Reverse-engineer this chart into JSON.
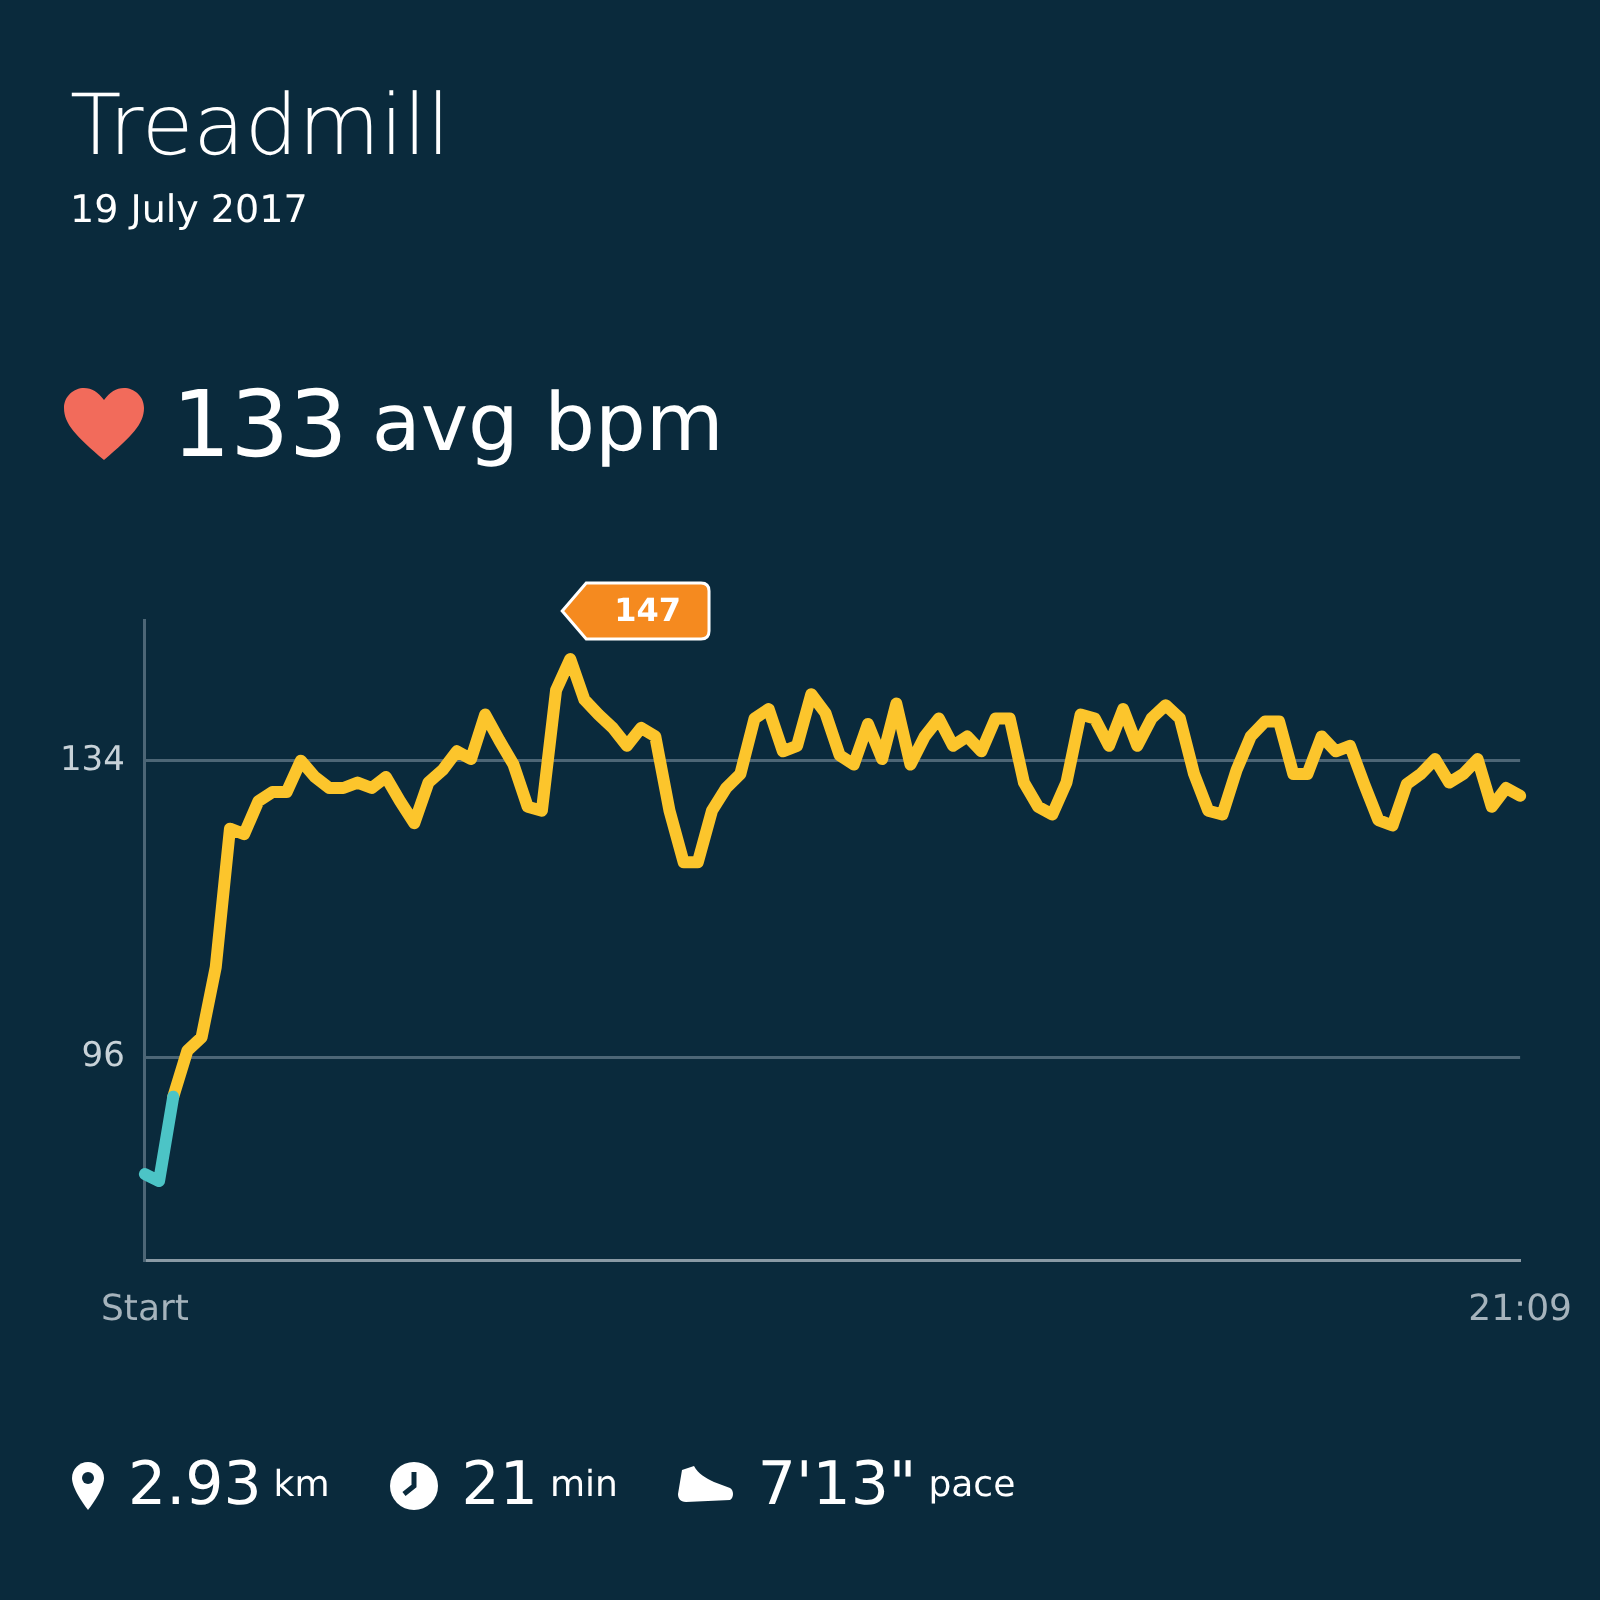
{
  "chart_data": {
    "type": "line",
    "title": "Treadmill",
    "subtitle": "19 July 2017",
    "annotations": [
      "133 avg bpm",
      "147",
      "2.93 km",
      "21 min",
      "7'13\" pace"
    ],
    "categories": [
      "Start",
      null,
      null,
      null,
      null,
      null,
      null,
      null,
      null,
      null,
      null,
      null,
      null,
      null,
      null,
      null,
      null,
      null,
      null,
      null,
      null,
      null,
      null,
      null,
      null,
      null,
      null,
      null,
      null,
      null,
      null,
      null,
      null,
      null,
      null,
      null,
      null,
      null,
      null,
      null,
      null,
      null,
      null,
      null,
      null,
      null,
      null,
      null,
      null,
      null,
      null,
      null,
      null,
      null,
      null,
      null,
      null,
      null,
      null,
      null,
      null,
      null,
      null,
      null,
      null,
      null,
      null,
      null,
      null,
      null,
      null,
      null,
      null,
      null,
      null,
      null,
      null,
      null,
      null,
      null,
      null,
      null,
      null,
      null,
      null,
      null,
      null,
      null,
      null,
      null,
      null,
      null,
      null,
      null,
      null,
      null,
      null,
      "21:09"
    ],
    "series": [
      {
        "color": "#4cc4c6",
        "values": [
          81.1,
          80.2,
          91.0,
          null,
          null,
          null,
          null,
          null,
          null,
          null,
          null,
          null,
          null,
          null,
          null,
          null,
          null,
          null,
          null,
          null,
          null,
          null,
          null,
          null,
          null,
          null,
          null,
          null,
          null,
          null,
          null,
          null,
          null,
          null,
          null,
          null,
          null,
          null,
          null,
          null,
          null,
          null,
          null,
          null,
          null,
          null,
          null,
          null,
          null,
          null,
          null,
          null,
          null,
          null,
          null,
          null,
          null,
          null,
          null,
          null,
          null,
          null,
          null,
          null,
          null,
          null,
          null,
          null,
          null,
          null,
          null,
          null,
          null,
          null,
          null,
          null,
          null,
          null,
          null,
          null,
          null,
          null,
          null,
          null,
          null,
          null,
          null,
          null,
          null,
          null,
          null,
          null,
          null,
          null,
          null,
          null,
          null,
          null
        ]
      },
      {
        "color": "#fcc52c",
        "values": [
          null,
          null,
          91.0,
          96.9,
          98.6,
          107.6,
          125.3,
          124.6,
          128.8,
          130,
          130,
          134,
          131.9,
          130.5,
          130.5,
          131.2,
          130.5,
          131.9,
          128.8,
          126,
          131.2,
          132.8,
          135.2,
          134.2,
          139.9,
          136.6,
          133.5,
          128.1,
          127.6,
          143,
          147,
          141.8,
          139.9,
          138.2,
          135.9,
          138.2,
          137.1,
          127.6,
          121,
          121,
          127.6,
          130.5,
          132.3,
          139.4,
          140.6,
          135.2,
          135.9,
          142.5,
          140.1,
          134.7,
          133.5,
          138.7,
          134.2,
          141.3,
          133.5,
          137.1,
          139.4,
          135.9,
          137.1,
          135.2,
          139.4,
          139.4,
          131.2,
          128.1,
          127.1,
          131.2,
          139.9,
          139.4,
          135.9,
          140.6,
          135.9,
          139.4,
          141.1,
          139.4,
          132.3,
          127.6,
          127.1,
          132.8,
          137.1,
          139,
          139,
          132.3,
          132.3,
          137.1,
          135.2,
          135.9,
          131,
          126.4,
          125.7,
          131,
          132.3,
          134.2,
          131.2,
          132.3,
          134.2,
          128.1,
          130.5,
          129.5
        ]
      }
    ],
    "ylim": [
      70,
      152
    ],
    "yticks": [
      96,
      134
    ],
    "grid": "y",
    "legend": false,
    "marker": "none",
    "line_style": "solid"
  }
}
